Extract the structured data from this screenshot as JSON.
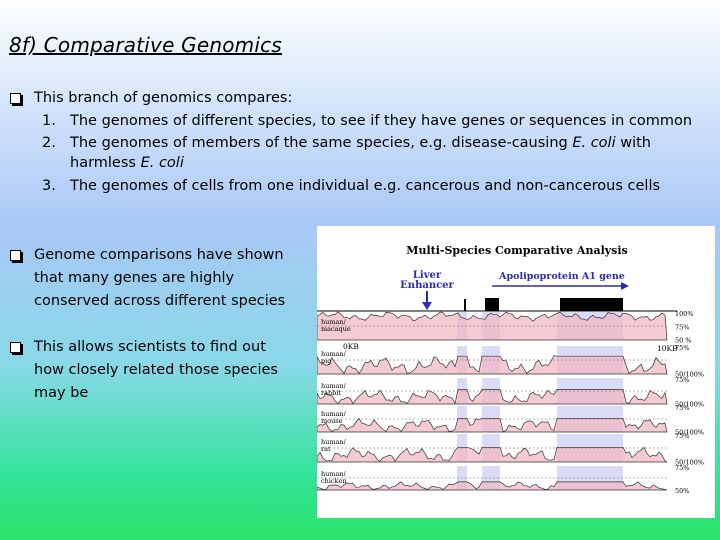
{
  "slide": {
    "title": "8f) Comparative Genomics",
    "bullet1": {
      "text": "This branch of genomics compares:",
      "items": [
        {
          "num": "1.",
          "text": "The genomes of different species, to see if they have genes  or sequences in common"
        },
        {
          "num": "2.",
          "line1_a": "The genomes of members of the same species, e.g. disease-causing ",
          "line1_italic": "E. coli",
          "line1_b": "  with",
          "line2_a": "harmless ",
          "line2_italic": "E. coli"
        },
        {
          "num": "3.",
          "text": "The genomes of cells from one individual e.g. cancerous and non-cancerous cells"
        }
      ]
    },
    "bullet2": [
      "Genome comparisons have shown",
      "that many genes are highly",
      "conserved across different species"
    ],
    "bullet3": [
      "This allows scientists to find out",
      "how closely related those species",
      "may be"
    ]
  },
  "figure": {
    "title": "Multi-Species Comparative Analysis",
    "enhancer_label": [
      "Liver",
      "Enhancer"
    ],
    "gene_label": "Apolipoprotein A1 gene",
    "rows": [
      {
        "label": [
          "human/",
          "macaque"
        ],
        "levels": [
          "100%",
          "75%",
          "50 %"
        ]
      },
      {
        "label": [
          "human/",
          "pig"
        ],
        "levels": [
          "75%",
          "50/100%"
        ]
      },
      {
        "label": [
          "human/",
          "rabbit"
        ],
        "levels": [
          "75%",
          "50/100%"
        ]
      },
      {
        "label": [
          "human/",
          "mouse"
        ],
        "levels": [
          "75%",
          "50/100%"
        ]
      },
      {
        "label": [
          "human/",
          "rat"
        ],
        "levels": [
          "75%",
          "50/100%"
        ]
      },
      {
        "label": [
          "human/",
          "chicken"
        ],
        "levels": [
          "75%",
          "50%"
        ]
      }
    ],
    "scale_left": "0KB",
    "scale_right": "10KB",
    "colors": {
      "conserved_noncoding": "#f0b8c4",
      "exon": "#b9bdf0",
      "enhancer_text": "#2b2bb5",
      "gene_text": "#2b2bb5"
    }
  }
}
